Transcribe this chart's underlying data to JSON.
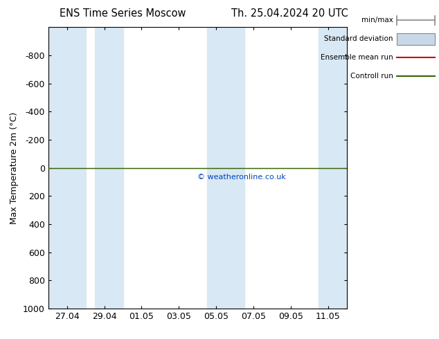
{
  "title_left": "ENS Time Series Moscow",
  "title_right": "Th. 25.04.2024 20 UTC",
  "ylabel": "Max Temperature 2m (°C)",
  "ylim_bottom": 1000,
  "ylim_top": -1000,
  "yticks": [
    -800,
    -600,
    -400,
    -200,
    0,
    200,
    400,
    600,
    800,
    1000
  ],
  "xtick_labels": [
    "27.04",
    "29.04",
    "01.05",
    "03.05",
    "05.05",
    "07.05",
    "09.05",
    "11.05"
  ],
  "xtick_positions": [
    1,
    3,
    5,
    7,
    9,
    11,
    13,
    15
  ],
  "xlim": [
    0,
    16
  ],
  "blue_bands": [
    [
      0.0,
      2.0
    ],
    [
      2.5,
      4.0
    ],
    [
      8.5,
      10.5
    ],
    [
      14.5,
      16.0
    ]
  ],
  "control_run_y": 0,
  "control_run_color": "#336600",
  "ensemble_mean_color": "#cc0000",
  "minmax_color": "#888888",
  "std_fill_color": "#c8d8e8",
  "watermark": "© weatheronline.co.uk",
  "watermark_color": "#0044bb",
  "bg_color": "#ffffff",
  "plot_bg_color": "#ffffff",
  "band_color": "#d8e8f4",
  "font_size": 9,
  "title_font_size": 10.5
}
